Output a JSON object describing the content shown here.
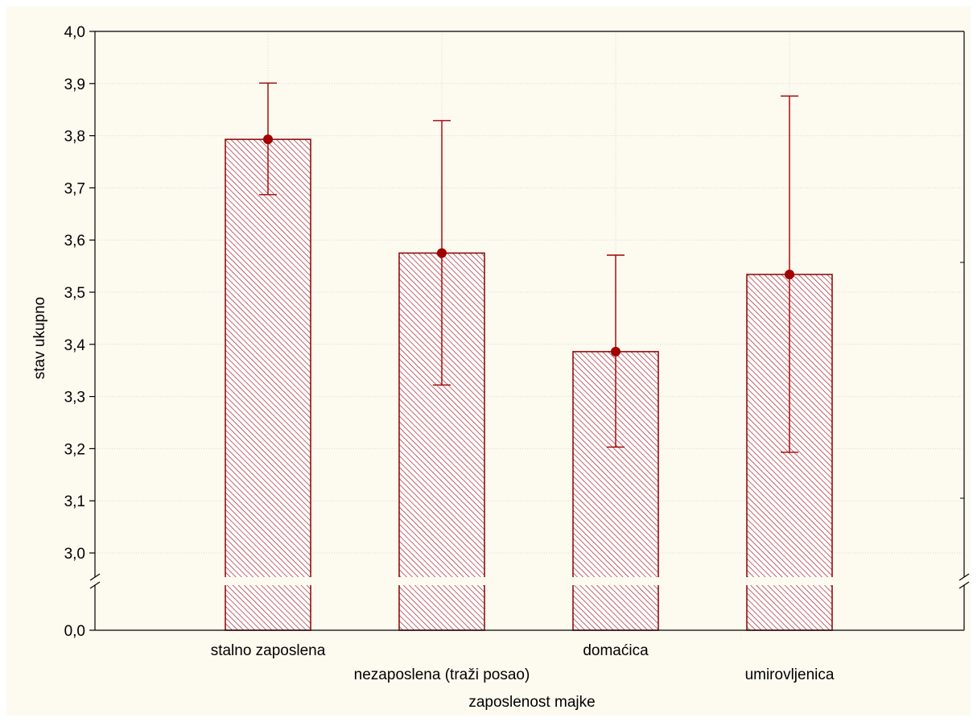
{
  "chart_data": {
    "type": "bar",
    "title": "",
    "xlabel": "zaposlenost majke",
    "ylabel": "stav ukupno",
    "categories": [
      "stalno zaposlena",
      "nezaposlena (traži posao)",
      "domaćica",
      "umirovljenica"
    ],
    "values": [
      3.793,
      3.575,
      3.386,
      3.534
    ],
    "error_low": [
      3.687,
      3.322,
      3.203,
      3.193
    ],
    "error_high": [
      3.901,
      3.829,
      3.571,
      3.876
    ],
    "yticks": [
      "4,0",
      "3,9",
      "3,8",
      "3,7",
      "3,6",
      "3,5",
      "3,4",
      "3,3",
      "3,2",
      "3,1",
      "3,0",
      "0,0"
    ],
    "ytick_values": [
      4.0,
      3.9,
      3.8,
      3.7,
      3.6,
      3.5,
      3.4,
      3.3,
      3.2,
      3.1,
      3.0,
      0.0
    ],
    "ylim": [
      2.95,
      4.0
    ],
    "axis_break": true,
    "grid": true,
    "legend": "none",
    "colors": {
      "bar_stroke": "#8b0000",
      "hatch": "#a8202a",
      "error_bar": "#a00000",
      "marker": "#a00000",
      "background": "#fdfaf0",
      "grid": "#d8d8d8"
    }
  }
}
